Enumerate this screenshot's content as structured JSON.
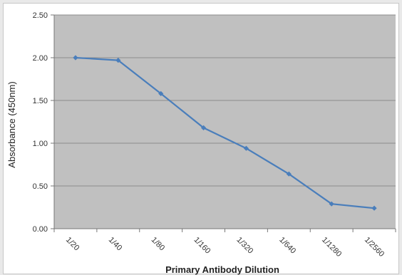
{
  "chart_data": {
    "type": "line",
    "categories": [
      "1/20",
      "1/40",
      "1/80",
      "1/160",
      "1/320",
      "1/640",
      "1/1280",
      "1/2560"
    ],
    "series": [
      {
        "values": [
          2.0,
          1.97,
          1.58,
          1.18,
          0.94,
          0.64,
          0.29,
          0.24
        ]
      }
    ],
    "xlabel": "Primary Antibody Dilution",
    "ylabel": "Absorbance (450nm)",
    "ylim": [
      0,
      2.5
    ],
    "yticks": [
      "0.00",
      "0.50",
      "1.00",
      "1.50",
      "2.00",
      "2.50"
    ],
    "grid": true,
    "plot_background": "#c0c0c0",
    "line_color": "#4a7ebb",
    "gridline_color": "#8c8c8c"
  }
}
